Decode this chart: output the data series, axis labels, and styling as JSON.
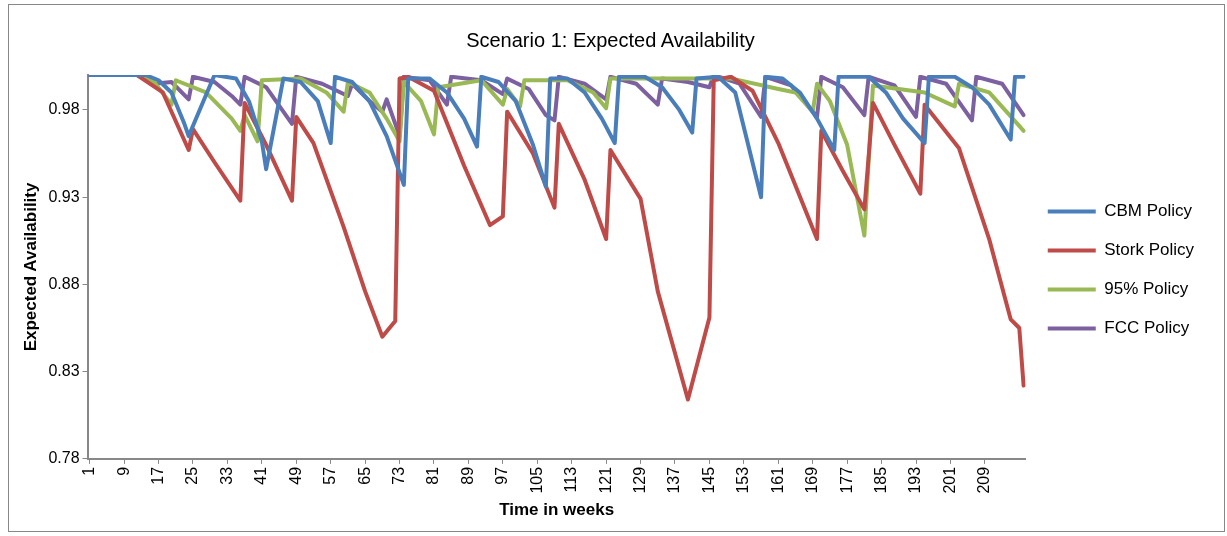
{
  "chart_data": {
    "type": "line",
    "title": "Scenario 1: Expected Availability",
    "xlabel": "Time in weeks",
    "ylabel": "Expected Availability",
    "xlim": [
      0.5,
      218.5
    ],
    "xticks": [
      1,
      9,
      17,
      25,
      33,
      41,
      49,
      57,
      65,
      73,
      81,
      89,
      97,
      105,
      113,
      121,
      129,
      137,
      145,
      153,
      161,
      169,
      177,
      185,
      193,
      201,
      209
    ],
    "ylim": [
      0.78,
      1.0
    ],
    "yticks": [
      0.78,
      0.83,
      0.88,
      0.93,
      0.98
    ],
    "grid": false,
    "legend": "right",
    "marker": "none",
    "line_style": "solid",
    "series": [
      {
        "name": "CBM Policy",
        "color": "#4a7ebb",
        "x": [
          1,
          14,
          17,
          20,
          23,
          24,
          30,
          35,
          38,
          41,
          42,
          46,
          50,
          54,
          57,
          58,
          62,
          66,
          70,
          74,
          75,
          80,
          84,
          88,
          91,
          92,
          96,
          100,
          104,
          107,
          108,
          112,
          116,
          120,
          123,
          124,
          130,
          134,
          138,
          141,
          142,
          147,
          151,
          154,
          157,
          158,
          162,
          166,
          170,
          174,
          175,
          182,
          186,
          190,
          195,
          196,
          202,
          206,
          210,
          215,
          216,
          218
        ],
        "values": [
          1.0,
          1.0,
          0.997,
          0.99,
          0.972,
          0.965,
          1.0,
          0.998,
          0.985,
          0.962,
          0.946,
          0.998,
          0.996,
          0.985,
          0.961,
          0.999,
          0.996,
          0.985,
          0.965,
          0.937,
          0.998,
          0.998,
          0.99,
          0.975,
          0.959,
          0.999,
          0.996,
          0.985,
          0.96,
          0.936,
          0.998,
          0.998,
          0.99,
          0.975,
          0.961,
          0.999,
          0.999,
          0.993,
          0.98,
          0.967,
          0.998,
          0.999,
          0.99,
          0.96,
          0.93,
          0.999,
          0.998,
          0.99,
          0.975,
          0.957,
          0.999,
          0.999,
          0.99,
          0.975,
          0.961,
          0.999,
          0.999,
          0.993,
          0.983,
          0.963,
          0.999,
          0.999
        ]
      },
      {
        "name": "Stork Policy",
        "color": "#be4b48",
        "x": [
          1,
          12,
          18,
          24,
          25,
          30,
          36,
          37,
          42,
          48,
          49,
          53,
          60,
          65,
          69,
          72,
          73,
          75,
          81,
          88,
          94,
          97,
          98,
          104,
          109,
          110,
          116,
          121,
          122,
          129,
          133,
          140,
          145,
          146,
          150,
          155,
          161,
          170,
          171,
          176,
          181,
          183,
          188,
          194,
          195,
          203,
          210,
          215,
          217,
          218
        ],
        "values": [
          1.0,
          1.0,
          0.99,
          0.957,
          0.969,
          0.95,
          0.928,
          0.984,
          0.96,
          0.928,
          0.976,
          0.961,
          0.913,
          0.876,
          0.85,
          0.859,
          0.998,
          0.999,
          0.991,
          0.948,
          0.914,
          0.919,
          0.979,
          0.955,
          0.924,
          0.972,
          0.94,
          0.906,
          0.957,
          0.929,
          0.876,
          0.814,
          0.861,
          0.997,
          0.999,
          0.991,
          0.961,
          0.906,
          0.968,
          0.945,
          0.923,
          0.984,
          0.96,
          0.932,
          0.983,
          0.958,
          0.906,
          0.86,
          0.855,
          0.822
        ]
      },
      {
        "name": "95% Policy",
        "color": "#98b954",
        "x": [
          1,
          12,
          16,
          20,
          21,
          28,
          34,
          36,
          37,
          40,
          41,
          50,
          56,
          60,
          61,
          66,
          70,
          73,
          74,
          78,
          81,
          82,
          92,
          97,
          98,
          101,
          102,
          107,
          112,
          118,
          121,
          122,
          135,
          150,
          161,
          165,
          169,
          170,
          173,
          177,
          181,
          183,
          195,
          202,
          203,
          210,
          218
        ],
        "values": [
          1.0,
          1.0,
          0.996,
          0.983,
          0.997,
          0.99,
          0.975,
          0.968,
          0.977,
          0.962,
          0.997,
          0.998,
          0.99,
          0.979,
          0.996,
          0.99,
          0.975,
          0.962,
          0.996,
          0.985,
          0.966,
          0.993,
          0.997,
          0.983,
          0.992,
          0.982,
          0.997,
          0.997,
          0.997,
          0.99,
          0.981,
          0.998,
          0.998,
          0.998,
          0.992,
          0.99,
          0.979,
          0.995,
          0.985,
          0.96,
          0.908,
          0.994,
          0.99,
          0.982,
          0.995,
          0.99,
          0.968
        ]
      },
      {
        "name": "FCC Policy",
        "color": "#7d60a0",
        "x": [
          1,
          12,
          16,
          20,
          24,
          25,
          30,
          34,
          36,
          37,
          42,
          48,
          49,
          55,
          61,
          62,
          66,
          69,
          70,
          73,
          74,
          80,
          84,
          85,
          92,
          97,
          98,
          103,
          107,
          109,
          110,
          116,
          121,
          122,
          128,
          133,
          134,
          140,
          145,
          146,
          152,
          157,
          158,
          164,
          170,
          171,
          176,
          181,
          182,
          188,
          193,
          194,
          200,
          206,
          207,
          213,
          218
        ],
        "values": [
          1.0,
          1.0,
          0.995,
          0.996,
          0.986,
          0.999,
          0.996,
          0.988,
          0.983,
          0.999,
          0.993,
          0.972,
          0.999,
          0.995,
          0.988,
          0.995,
          0.985,
          0.979,
          0.986,
          0.965,
          0.999,
          0.997,
          0.983,
          0.999,
          0.997,
          0.989,
          0.998,
          0.992,
          0.977,
          0.974,
          0.999,
          0.995,
          0.986,
          0.999,
          0.995,
          0.983,
          0.998,
          0.996,
          0.993,
          1.0,
          0.995,
          0.976,
          0.999,
          0.994,
          0.976,
          0.999,
          0.993,
          0.977,
          0.999,
          0.994,
          0.976,
          0.999,
          0.995,
          0.974,
          0.999,
          0.995,
          0.977
        ]
      }
    ]
  }
}
